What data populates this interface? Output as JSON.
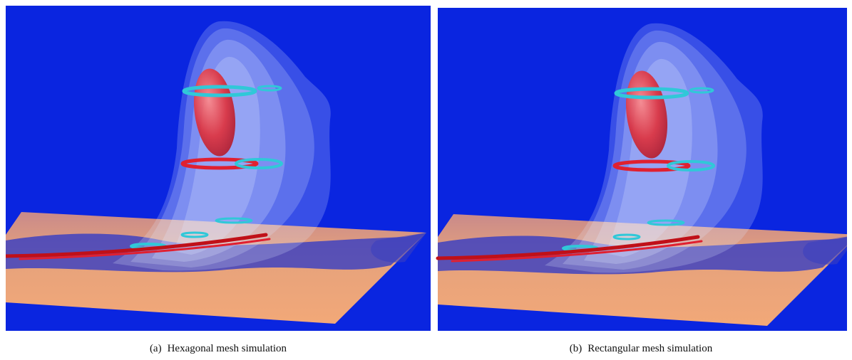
{
  "figures": [
    {
      "label": "(a)",
      "caption": "Hexagonal mesh simulation"
    },
    {
      "label": "(b)",
      "caption": "Rectangular mesh simulation"
    }
  ]
}
